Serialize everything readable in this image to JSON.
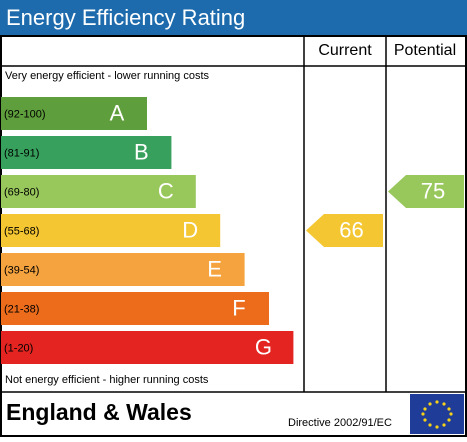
{
  "title": "Energy Efficiency Rating",
  "headers": {
    "current": "Current",
    "potential": "Potential"
  },
  "top_note": "Very energy efficient - lower running costs",
  "bottom_note": "Not energy efficient - higher running costs",
  "bands": [
    {
      "range": "(92-100)",
      "letter": "A",
      "color": "#5f9e3c"
    },
    {
      "range": "(81-91)",
      "letter": "B",
      "color": "#36a05c"
    },
    {
      "range": "(69-80)",
      "letter": "C",
      "color": "#98c75b"
    },
    {
      "range": "(55-68)",
      "letter": "D",
      "color": "#f4c631"
    },
    {
      "range": "(39-54)",
      "letter": "E",
      "color": "#f5a33e"
    },
    {
      "range": "(21-38)",
      "letter": "F",
      "color": "#ec6c1c"
    },
    {
      "range": "(1-20)",
      "letter": "G",
      "color": "#e42421"
    }
  ],
  "current": 66,
  "potential": 75,
  "footer": {
    "region": "England & Wales",
    "directive": "Directive 2002/91/EC"
  }
}
